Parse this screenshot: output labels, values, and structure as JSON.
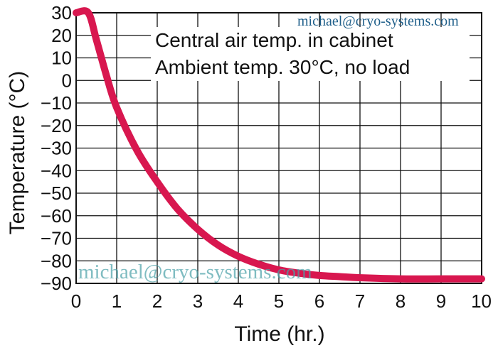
{
  "chart_data": {
    "type": "line",
    "xlabel": "Time (hr.)",
    "ylabel": "Temperature (°C)",
    "xlim": [
      0,
      10
    ],
    "ylim": [
      -90,
      30
    ],
    "x_ticks": [
      0,
      1,
      2,
      3,
      4,
      5,
      6,
      7,
      8,
      9,
      10
    ],
    "y_ticks": [
      30,
      20,
      10,
      0,
      -10,
      -20,
      -30,
      -40,
      -50,
      -60,
      -70,
      -80,
      -90
    ],
    "grid": true,
    "annotations": [
      "Central air temp. in cabinet",
      "Ambient temp. 30°C, no load"
    ],
    "series": [
      {
        "color": "#d8174f",
        "x": [
          0,
          0.3,
          0.5,
          0.75,
          1,
          1.5,
          2,
          2.5,
          3,
          3.5,
          4,
          4.5,
          5,
          5.5,
          6,
          6.5,
          7,
          8,
          9,
          10
        ],
        "y": [
          30,
          30,
          18,
          2,
          -12,
          -31,
          -45,
          -57,
          -66,
          -73,
          -78,
          -81.5,
          -84,
          -85.5,
          -86.5,
          -87,
          -87.5,
          -88,
          -88,
          -88
        ]
      }
    ]
  },
  "watermarks": {
    "top": "michael@cryo-systems.com",
    "bottom": "michael@cryo-systems.com"
  }
}
